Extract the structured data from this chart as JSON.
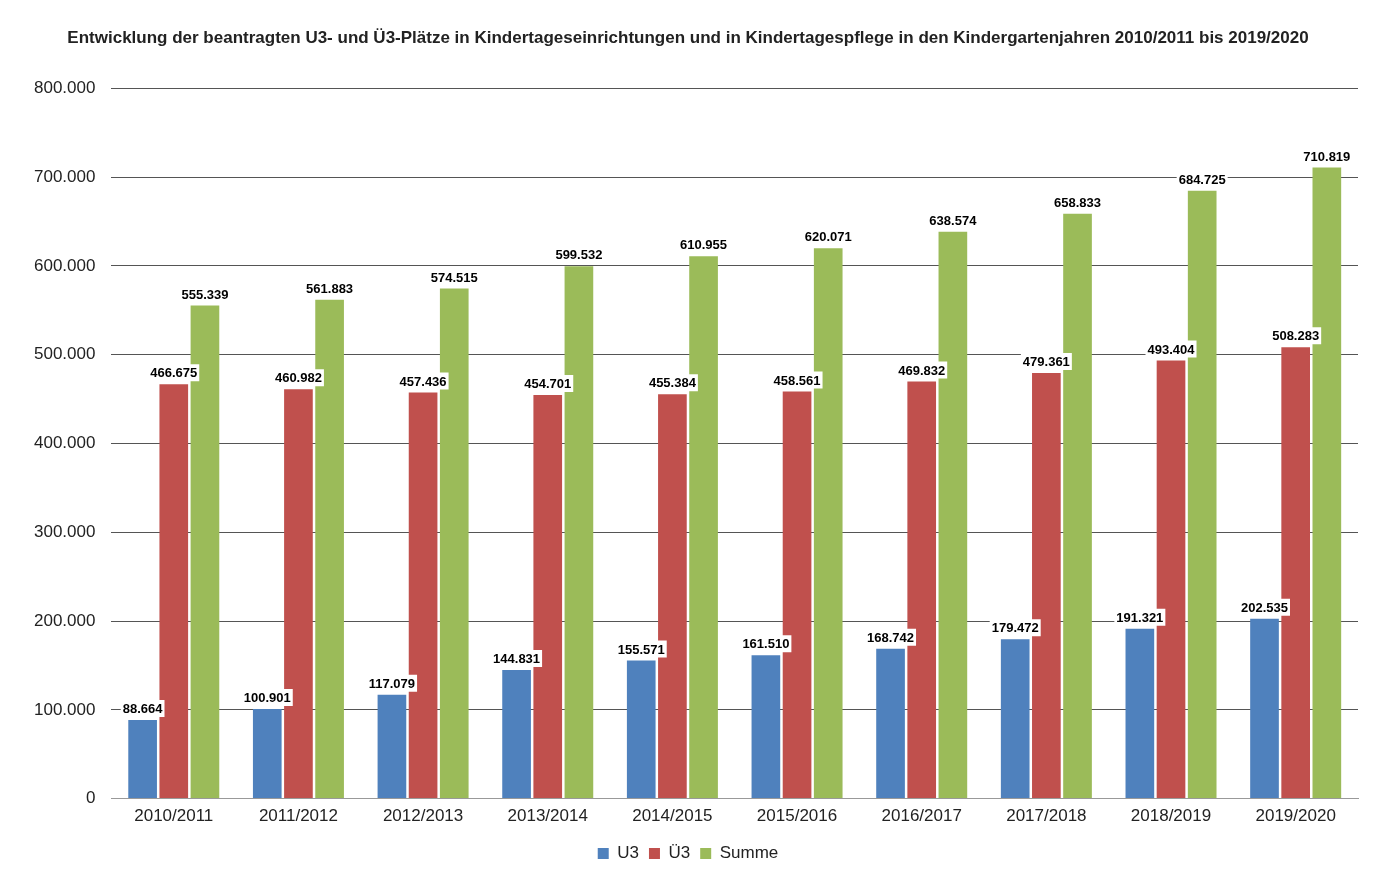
{
  "chart_data": {
    "type": "bar",
    "title": "Entwicklung der beantragten U3- und Ü3-Plätze in Kindertageseinrichtungen und in Kindertagespflege in den Kindergartenjahren 2010/2011 bis 2019/2020",
    "categories": [
      "2010/2011",
      "2011/2012",
      "2012/2013",
      "2013/2014",
      "2014/2015",
      "2015/2016",
      "2016/2017",
      "2017/2018",
      "2018/2019",
      "2019/2020"
    ],
    "series": [
      {
        "name": "U3",
        "color": "#4f81bd",
        "values": [
          88664,
          100901,
          117079,
          144831,
          155571,
          161510,
          168742,
          179472,
          191321,
          202535
        ],
        "value_labels": [
          "88.664",
          "100.901",
          "117.079",
          "144.831",
          "155.571",
          "161.510",
          "168.742",
          "179.472",
          "191.321",
          "202.535"
        ]
      },
      {
        "name": "Ü3",
        "color": "#c0504d",
        "values": [
          466675,
          460982,
          457436,
          454701,
          455384,
          458561,
          469832,
          479361,
          493404,
          508283
        ],
        "value_labels": [
          "466.675",
          "460.982",
          "457.436",
          "454.701",
          "455.384",
          "458.561",
          "469.832",
          "479.361",
          "493.404",
          "508.283"
        ]
      },
      {
        "name": "Summe",
        "color": "#9bbb59",
        "values": [
          555339,
          561883,
          574515,
          599532,
          610955,
          620071,
          638574,
          658833,
          684725,
          710819
        ],
        "value_labels": [
          "555.339",
          "561.883",
          "574.515",
          "599.532",
          "610.955",
          "620.071",
          "638.574",
          "658.833",
          "684.725",
          "710.819"
        ]
      }
    ],
    "ylim": [
      0,
      800000
    ],
    "yticks": [
      0,
      {
        "value": 100000,
        "label": "100.000"
      },
      {
        "value": 200000,
        "label": "200.000"
      },
      {
        "value": 300000,
        "label": "300.000"
      },
      {
        "value": 400000,
        "label": "400.000"
      },
      {
        "value": 500000,
        "label": "500.000"
      },
      {
        "value": 600000,
        "label": "600.000"
      },
      {
        "value": 700000,
        "label": "700.000"
      },
      {
        "value": 800000,
        "label": "800.000"
      }
    ],
    "grid": "y",
    "legend": "bottom"
  }
}
